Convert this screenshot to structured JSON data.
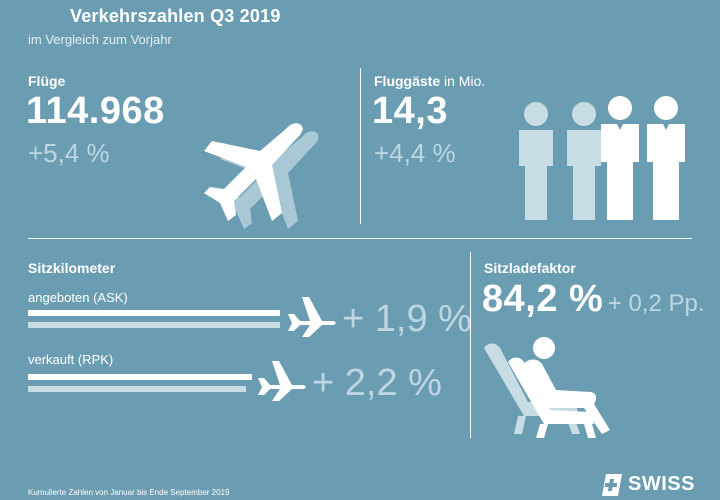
{
  "header": {
    "title": "Verkehrszahlen Q3 2019",
    "subtitle": "im Vergleich zum Vorjahr"
  },
  "flights": {
    "label": "Flüge",
    "value": "114.968",
    "change": "+5,4 %"
  },
  "passengers": {
    "label": "Fluggäste",
    "label_unit": "in Mio.",
    "value": "14,3",
    "change": "+4,4 %"
  },
  "seat_km": {
    "label": "Sitzkilometer",
    "ask_label": "angeboten (ASK)",
    "ask_change": "+ 1,9 %",
    "rpk_label": "verkauft (RPK)",
    "rpk_change": "+ 2,2 %"
  },
  "load_factor": {
    "label": "Sitzladefaktor",
    "value": "84,2 %",
    "change": "+ 0,2 Pp."
  },
  "footer": {
    "note": "Kumulierte Zahlen von Januar bis Ende September 2019",
    "logo": "SWISS"
  },
  "colors": {
    "background": "#6b9db2",
    "accent_light": "#bdd6e1",
    "white": "#ffffff"
  },
  "icons": [
    "airplane-icon",
    "passengers-icon",
    "seat-icon",
    "swiss-cross-icon"
  ]
}
